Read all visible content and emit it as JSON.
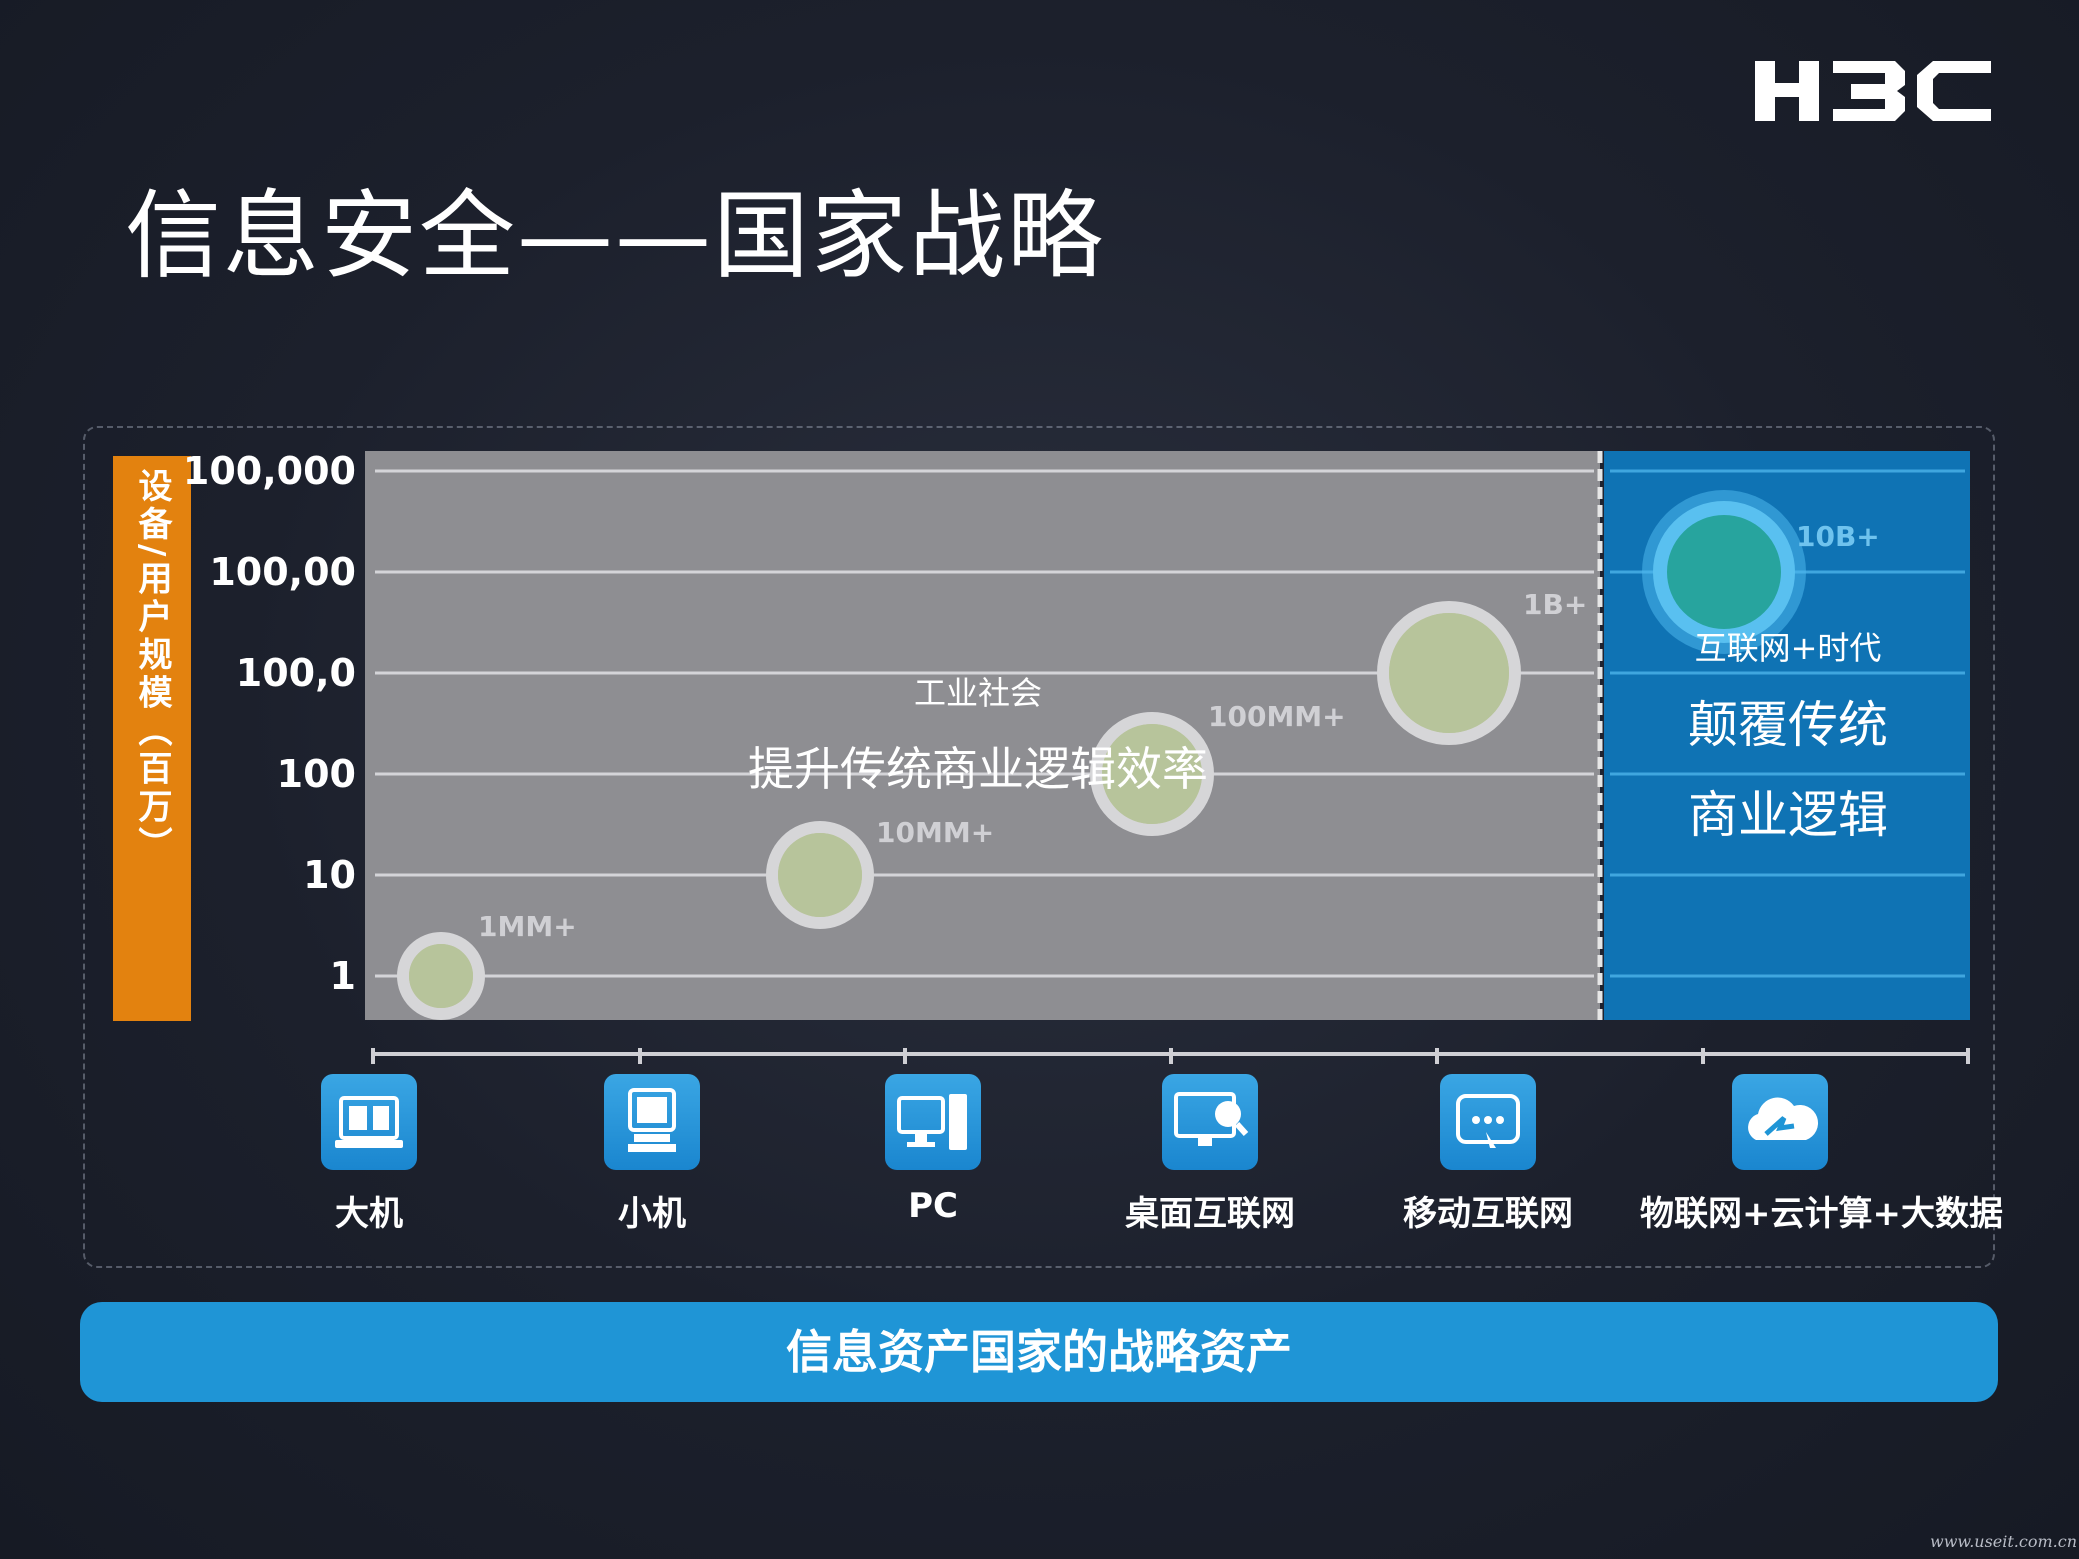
{
  "brand": {
    "logo_text": "H3C"
  },
  "title": "信息安全——国家战略",
  "chart_data": {
    "type": "scatter",
    "ylabel": "设备/用户规模（百万）",
    "y_ticks": [
      "100,000",
      "100,00",
      "100,0",
      "100",
      "10",
      "1"
    ],
    "y_scale": "log",
    "categories": [
      "大机",
      "小机",
      "PC",
      "桌面互联网",
      "移动互联网",
      "物联网+云计算+大数据"
    ],
    "points": [
      {
        "category": "大机",
        "y": 1,
        "label": "1MM+"
      },
      {
        "category": "小机",
        "y": 10,
        "label": "10MM+"
      },
      {
        "category": "PC",
        "y": 100,
        "label": "100MM+"
      },
      {
        "category": "桌面互联网",
        "y": 1000,
        "label": "1B+"
      },
      {
        "category": "物联网+云计算+大数据",
        "y": 10000,
        "label": "10B+"
      }
    ],
    "regions": [
      {
        "name": "工业社会",
        "subtitle": "提升传统商业逻辑效率",
        "color": "#8e8e92"
      },
      {
        "name": "互联网+时代",
        "subtitle": [
          "颠覆传统",
          "商业逻辑"
        ],
        "color": "#0f73b4"
      }
    ],
    "grid": true
  },
  "colors": {
    "accent_orange": "#e3820f",
    "accent_blue": "#1f95d6",
    "bubble_fill": "#b8c49a"
  },
  "eras": [
    {
      "label": "大机",
      "icon": "mainframe-icon"
    },
    {
      "label": "小机",
      "icon": "minicomputer-icon"
    },
    {
      "label": "PC",
      "icon": "pc-icon"
    },
    {
      "label": "桌面互联网",
      "icon": "desktop-internet-icon"
    },
    {
      "label": "移动互联网",
      "icon": "mobile-internet-icon"
    },
    {
      "label": "物联网+云计算+大数据",
      "icon": "cloud-icon"
    }
  ],
  "banner": "信息资产国家的战略资产",
  "watermark": "www.useit.com.cn"
}
